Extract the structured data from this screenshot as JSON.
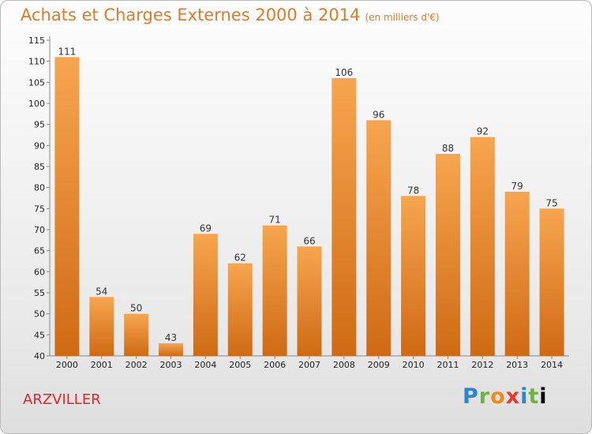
{
  "header": {
    "title": "Achats et Charges Externes 2000 à 2014",
    "subtitle": "(en milliers d'€)"
  },
  "footer": {
    "place": "ARZVILLER",
    "brand": [
      "P",
      "r",
      "o",
      "x",
      "i",
      "t",
      "i"
    ]
  },
  "colors": {
    "bar_top": "#f7a54f",
    "bar_bottom": "#cf6a14",
    "title": "#e27a22",
    "place": "#e0232f"
  },
  "chart_data": {
    "type": "bar",
    "title": "Achats et Charges Externes 2000 à 2014",
    "subtitle": "(en milliers d'€)",
    "xlabel": "",
    "ylabel": "",
    "categories": [
      "2000",
      "2001",
      "2002",
      "2003",
      "2004",
      "2005",
      "2006",
      "2007",
      "2008",
      "2009",
      "2010",
      "2011",
      "2012",
      "2013",
      "2014"
    ],
    "values": [
      111,
      54,
      50,
      43,
      69,
      62,
      71,
      66,
      106,
      96,
      78,
      88,
      92,
      79,
      75
    ],
    "ylim": [
      40,
      115
    ],
    "yticks": [
      40,
      45,
      50,
      55,
      60,
      65,
      70,
      75,
      80,
      85,
      90,
      95,
      100,
      105,
      110,
      115
    ],
    "grid": false,
    "data_labels": true
  }
}
